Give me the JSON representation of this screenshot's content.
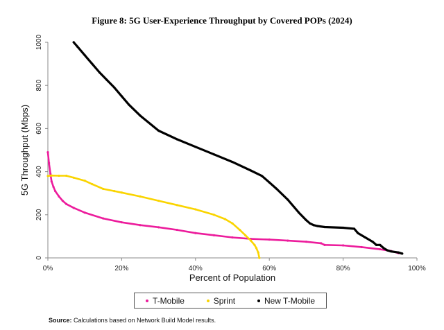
{
  "chart_data": {
    "type": "line",
    "title": "Figure 8: 5G User-Experience Throughput by Covered POPs (2024)",
    "xlabel": "Percent of Population",
    "ylabel": "5G Throughput (Mbps)",
    "xlim": [
      0,
      100
    ],
    "ylim": [
      0,
      1000
    ],
    "xticks": [
      0,
      20,
      40,
      60,
      80,
      100
    ],
    "xtick_labels": [
      "0%",
      "20%",
      "40%",
      "60%",
      "80%",
      "100%"
    ],
    "yticks": [
      0,
      200,
      400,
      600,
      800,
      1000
    ],
    "ytick_labels": [
      "0",
      "200",
      "400",
      "600",
      "800",
      "1000"
    ],
    "grid": false,
    "legend_position": "bottom",
    "series": [
      {
        "name": "T-Mobile",
        "color": "#ec1c9c",
        "x": [
          0,
          0.3,
          0.7,
          1,
          1.5,
          2,
          3,
          4,
          5,
          7,
          10,
          15,
          20,
          25,
          30,
          35,
          40,
          45,
          50,
          55,
          60,
          65,
          70,
          74,
          75,
          80,
          85,
          90,
          93,
          95
        ],
        "y": [
          490,
          440,
          390,
          355,
          330,
          310,
          285,
          265,
          250,
          232,
          210,
          183,
          165,
          152,
          142,
          130,
          115,
          105,
          95,
          88,
          85,
          80,
          75,
          68,
          60,
          58,
          50,
          40,
          32,
          22
        ]
      },
      {
        "name": "Sprint",
        "color": "#fad400",
        "x": [
          0,
          1,
          3,
          5,
          7,
          10,
          12,
          15,
          18,
          20,
          25,
          30,
          35,
          40,
          45,
          48,
          50,
          52,
          53.5,
          55,
          56,
          56.5,
          57,
          57.3
        ],
        "y": [
          380,
          382,
          381,
          381,
          372,
          358,
          342,
          320,
          310,
          303,
          285,
          265,
          245,
          225,
          200,
          180,
          160,
          130,
          105,
          80,
          60,
          45,
          25,
          0
        ]
      },
      {
        "name": "New T-Mobile",
        "color": "#000000",
        "x": [
          7,
          8,
          10,
          12,
          14,
          16,
          18,
          20,
          22,
          25,
          30,
          35,
          40,
          45,
          50,
          55,
          58,
          60,
          62,
          65,
          68,
          70,
          71,
          72,
          73,
          75,
          80,
          83,
          84,
          86,
          88,
          89,
          90,
          91,
          92,
          93,
          95,
          96
        ],
        "y": [
          1000,
          980,
          940,
          900,
          860,
          825,
          790,
          750,
          710,
          660,
          590,
          550,
          515,
          480,
          445,
          405,
          380,
          350,
          320,
          270,
          210,
          175,
          160,
          152,
          148,
          143,
          140,
          135,
          115,
          95,
          75,
          60,
          60,
          45,
          35,
          30,
          25,
          20
        ]
      }
    ]
  },
  "source": {
    "label": "Source:",
    "text": "Calculations based on Network Build Model results."
  }
}
